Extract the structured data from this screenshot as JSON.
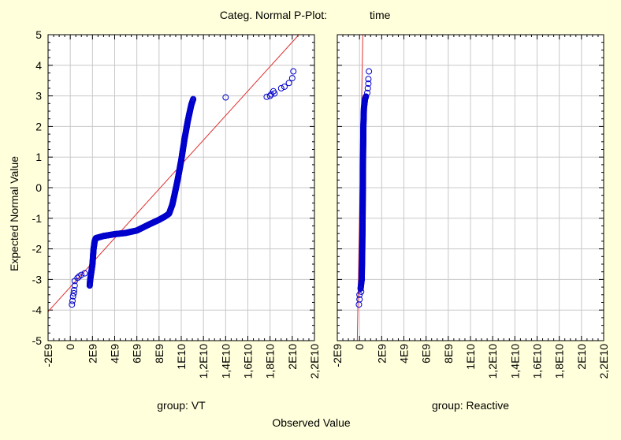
{
  "chart_data": {
    "type": "scatter",
    "title": "Categ. Normal P-Plot:",
    "title_variable": "time",
    "xlabel": "Observed Value",
    "ylabel": "Expected Normal Value",
    "background_color": "#ffffdb",
    "plot_background_color": "#ffffff",
    "point_color": "#0000cc",
    "line_color": "#e03030",
    "grid": true,
    "xlim": [
      -2000000000,
      22000000000
    ],
    "ylim": [
      -5,
      5
    ],
    "x_ticks": [
      -2000000000,
      0,
      2000000000,
      4000000000,
      6000000000,
      8000000000,
      10000000000,
      12000000000,
      14000000000,
      16000000000,
      18000000000,
      20000000000,
      22000000000
    ],
    "x_tick_labels": [
      "-2E9",
      "0",
      "2E9",
      "4E9",
      "6E9",
      "8E9",
      "1E10",
      "1,2E10",
      "1,4E10",
      "1,6E10",
      "1,8E10",
      "2E10",
      "2,2E10"
    ],
    "y_ticks": [
      -5,
      -4,
      -3,
      -2,
      -1,
      0,
      1,
      2,
      3,
      4,
      5
    ],
    "y_tick_labels": [
      "-5",
      "-4",
      "-3",
      "-2",
      "-1",
      "0",
      "1",
      "2",
      "3",
      "4",
      "5"
    ],
    "panels": [
      {
        "label": "group: VT",
        "reference_line": {
          "x": [
            -2000000000,
            20600000000
          ],
          "y": [
            -4.05,
            5.0
          ]
        },
        "trend": [
          [
            1750000000,
            -3.2
          ],
          [
            1800000000,
            -3.0
          ],
          [
            2000000000,
            -2.5
          ],
          [
            2100000000,
            -2.0
          ],
          [
            2200000000,
            -1.75
          ],
          [
            2300000000,
            -1.65
          ],
          [
            3000000000,
            -1.58
          ],
          [
            4000000000,
            -1.52
          ],
          [
            5000000000,
            -1.48
          ],
          [
            6000000000,
            -1.4
          ],
          [
            7000000000,
            -1.22
          ],
          [
            8000000000,
            -1.05
          ],
          [
            8500000000,
            -0.95
          ],
          [
            8900000000,
            -0.85
          ],
          [
            9200000000,
            -0.55
          ],
          [
            9500000000,
            -0.05
          ],
          [
            9700000000,
            0.3
          ],
          [
            10000000000,
            0.9
          ],
          [
            10300000000,
            1.6
          ],
          [
            10600000000,
            2.2
          ],
          [
            10900000000,
            2.7
          ],
          [
            11100000000,
            2.92
          ]
        ],
        "outliers": [
          [
            400000000,
            -3.05
          ],
          [
            400000000,
            -3.2
          ],
          [
            350000000,
            -3.35
          ],
          [
            320000000,
            -3.45
          ],
          [
            250000000,
            -3.55
          ],
          [
            200000000,
            -3.7
          ],
          [
            150000000,
            -3.82
          ],
          [
            650000000,
            -2.95
          ],
          [
            800000000,
            -2.9
          ],
          [
            1000000000,
            -2.85
          ],
          [
            1300000000,
            -2.8
          ],
          [
            14000000000,
            2.95
          ],
          [
            17700000000,
            2.97
          ],
          [
            18000000000,
            3.0
          ],
          [
            18100000000,
            3.05
          ],
          [
            18300000000,
            3.15
          ],
          [
            18400000000,
            3.08
          ],
          [
            19000000000,
            3.25
          ],
          [
            19300000000,
            3.3
          ],
          [
            19700000000,
            3.42
          ],
          [
            20000000000,
            3.58
          ],
          [
            20100000000,
            3.8
          ]
        ]
      },
      {
        "label": "group: Reactive",
        "reference_line": {
          "x": [
            -200000000,
            300000000
          ],
          "y": [
            -5.0,
            5.0
          ]
        },
        "trend": [
          [
            100000000,
            -3.3
          ],
          [
            200000000,
            -3.0
          ],
          [
            250000000,
            -2.0
          ],
          [
            280000000,
            -1.0
          ],
          [
            300000000,
            0.0
          ],
          [
            320000000,
            1.0
          ],
          [
            350000000,
            2.0
          ],
          [
            400000000,
            2.6
          ],
          [
            500000000,
            2.9
          ],
          [
            600000000,
            3.0
          ]
        ],
        "outliers": [
          [
            0,
            -3.5
          ],
          [
            0,
            -3.65
          ],
          [
            -50000000,
            -3.82
          ],
          [
            150000000,
            -3.4
          ],
          [
            700000000,
            3.1
          ],
          [
            750000000,
            3.25
          ],
          [
            800000000,
            3.4
          ],
          [
            800000000,
            3.55
          ],
          [
            850000000,
            3.8
          ]
        ]
      }
    ]
  }
}
